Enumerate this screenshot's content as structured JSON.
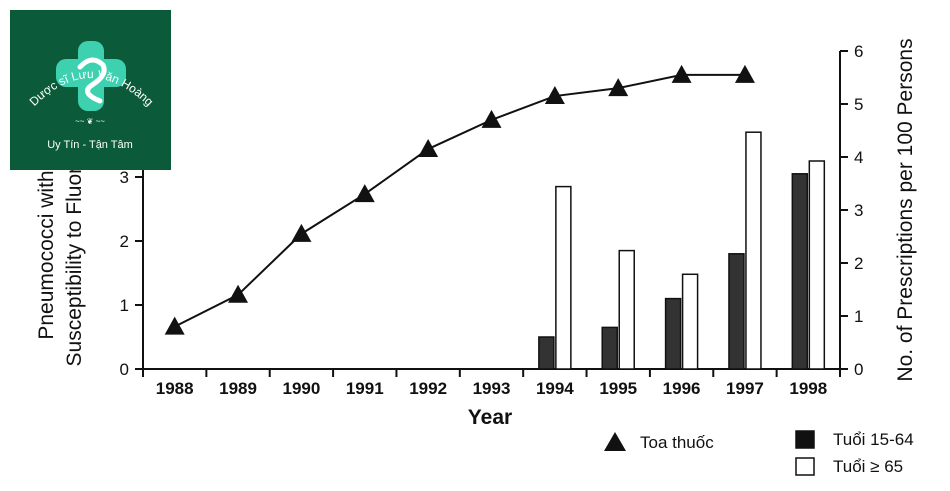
{
  "chart_data": {
    "type": "bar",
    "xlabel": "Year",
    "categories": [
      "1988",
      "1989",
      "1990",
      "1991",
      "1992",
      "1993",
      "1994",
      "1995",
      "1996",
      "1997",
      "1998"
    ],
    "left_axis": {
      "label_line1": "Pneumococci with",
      "label_line2": "Susceptibility to Fluoroq",
      "ticks": [
        "0",
        "1",
        "2",
        "3"
      ],
      "ylim": [
        0,
        3.5
      ]
    },
    "right_axis": {
      "label": "No. of Prescriptions per 100 Persons",
      "ticks": [
        "0",
        "1",
        "2",
        "3",
        "4",
        "5",
        "6"
      ],
      "ylim": [
        0,
        6
      ]
    },
    "line_series": {
      "name": "Toa thuốc",
      "axis": "right",
      "x": [
        "1988",
        "1989",
        "1990",
        "1991",
        "1992",
        "1993",
        "1994",
        "1995",
        "1996",
        "1997"
      ],
      "values": [
        0.8,
        1.4,
        2.55,
        3.3,
        4.15,
        4.7,
        5.15,
        5.3,
        5.55,
        5.55
      ],
      "marker": "triangle"
    },
    "bar_series": [
      {
        "name": "Tuổi 15-64",
        "axis": "left",
        "color": "#333333",
        "x": [
          "1994",
          "1995",
          "1996",
          "1997",
          "1998"
        ],
        "values": [
          0.5,
          0.65,
          1.1,
          1.8,
          3.05
        ]
      },
      {
        "name": "Tuổi ≥ 65",
        "axis": "left",
        "color": "#ffffff",
        "x": [
          "1994",
          "1995",
          "1996",
          "1997",
          "1998"
        ],
        "values": [
          2.85,
          1.85,
          1.48,
          3.7,
          3.25
        ]
      }
    ],
    "legend": [
      "Toa thuốc",
      "Tuổi 15-64",
      "Tuổi ≥ 65"
    ],
    "legend_placement": "bottom-right",
    "grid": false
  },
  "logo": {
    "brand": "Dược sĩ Lưu Văn Hoàng",
    "tagline": "Uy Tín - Tận Tâm",
    "background": "#0b5b3a",
    "accent": "#3ed1b0"
  }
}
